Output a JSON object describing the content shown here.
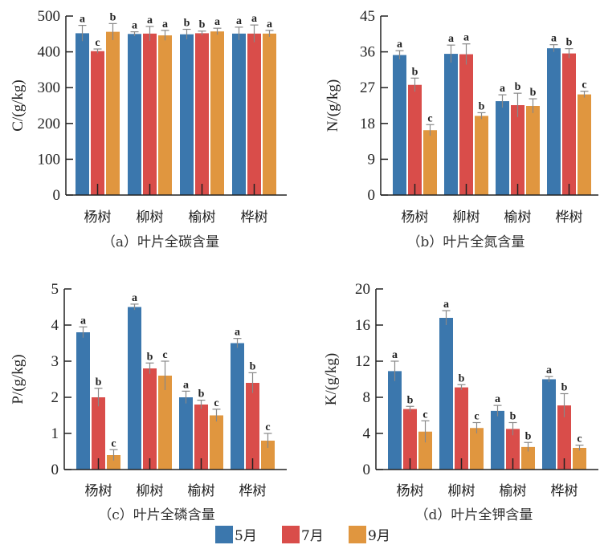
{
  "colors": {
    "may": "#3b77ad",
    "jul": "#d94d4a",
    "sep": "#e0963f",
    "axis": "#222222",
    "err": "#888888"
  },
  "legend": [
    {
      "label": "5月",
      "color_key": "may"
    },
    {
      "label": "7月",
      "color_key": "jul"
    },
    {
      "label": "9月",
      "color_key": "sep"
    }
  ],
  "chart_data": [
    {
      "type": "bar",
      "title": "（a）叶片全碳含量",
      "xlabel": "",
      "ylabel": "C/(g/kg)",
      "ylim": [
        0,
        500
      ],
      "yticks": [
        0,
        100,
        200,
        300,
        400,
        500
      ],
      "categories": [
        "杨树",
        "柳树",
        "榆树",
        "桦树"
      ],
      "series": [
        {
          "name": "5月",
          "values": [
            452,
            450,
            449,
            451
          ],
          "errors": [
            22,
            6,
            14,
            18
          ],
          "sig": [
            "a",
            "a",
            "b",
            "a"
          ]
        },
        {
          "name": "7月",
          "values": [
            402,
            451,
            452,
            451
          ],
          "errors": [
            6,
            20,
            6,
            24
          ],
          "sig": [
            "c",
            "a",
            "b",
            "a"
          ]
        },
        {
          "name": "9月",
          "values": [
            456,
            446,
            457,
            451
          ],
          "errors": [
            23,
            14,
            9,
            9
          ],
          "sig": [
            "b",
            "a",
            "a",
            "a"
          ]
        }
      ]
    },
    {
      "type": "bar",
      "title": "（b）叶片全氮含量",
      "xlabel": "",
      "ylabel": "N/(g/kg)",
      "ylim": [
        0,
        45
      ],
      "yticks": [
        0,
        9,
        18,
        27,
        36,
        45
      ],
      "categories": [
        "杨树",
        "柳树",
        "榆树",
        "桦树"
      ],
      "series": [
        {
          "name": "5月",
          "values": [
            35.2,
            35.5,
            23.6,
            36.9
          ],
          "errors": [
            1.1,
            2.2,
            1.6,
            0.9
          ],
          "sig": [
            "a",
            "a",
            "a",
            "a"
          ]
        },
        {
          "name": "7月",
          "values": [
            27.7,
            35.4,
            22.6,
            35.6
          ],
          "errors": [
            1.7,
            2.6,
            3.0,
            1.2
          ],
          "sig": [
            "b",
            "a",
            "b",
            "b"
          ]
        },
        {
          "name": "9月",
          "values": [
            16.3,
            19.9,
            22.4,
            25.3
          ],
          "errors": [
            1.4,
            0.8,
            1.8,
            0.8
          ],
          "sig": [
            "c",
            "b",
            "b",
            "c"
          ]
        }
      ]
    },
    {
      "type": "bar",
      "title": "（c）叶片全磷含量",
      "xlabel": "",
      "ylabel": "P/(g/kg)",
      "ylim": [
        0,
        5
      ],
      "yticks": [
        0,
        1,
        2,
        3,
        4,
        5
      ],
      "categories": [
        "杨树",
        "柳树",
        "榆树",
        "桦树"
      ],
      "series": [
        {
          "name": "5月",
          "values": [
            3.8,
            4.5,
            2.0,
            3.5
          ],
          "errors": [
            0.15,
            0.08,
            0.17,
            0.13
          ],
          "sig": [
            "a",
            "a",
            "a",
            "a"
          ]
        },
        {
          "name": "7月",
          "values": [
            2.0,
            2.8,
            1.8,
            2.4
          ],
          "errors": [
            0.25,
            0.15,
            0.12,
            0.28
          ],
          "sig": [
            "b",
            "b",
            "b",
            "b"
          ]
        },
        {
          "name": "9月",
          "values": [
            0.4,
            2.6,
            1.5,
            0.8
          ],
          "errors": [
            0.15,
            0.4,
            0.17,
            0.2
          ],
          "sig": [
            "c",
            "c",
            "c",
            "c"
          ]
        }
      ]
    },
    {
      "type": "bar",
      "title": "（d）叶片全钾含量",
      "xlabel": "",
      "ylabel": "K/(g/kg)",
      "ylim": [
        0,
        20
      ],
      "yticks": [
        0,
        4,
        8,
        12,
        16,
        20
      ],
      "categories": [
        "杨树",
        "柳树",
        "榆树",
        "桦树"
      ],
      "series": [
        {
          "name": "5月",
          "values": [
            10.9,
            16.8,
            6.5,
            10.0
          ],
          "errors": [
            1.1,
            0.8,
            0.6,
            0.3
          ],
          "sig": [
            "a",
            "a",
            "a",
            "a"
          ]
        },
        {
          "name": "7月",
          "values": [
            6.7,
            9.1,
            4.5,
            7.1
          ],
          "errors": [
            0.3,
            0.3,
            0.7,
            1.3
          ],
          "sig": [
            "b",
            "b",
            "b",
            "b"
          ]
        },
        {
          "name": "9月",
          "values": [
            4.2,
            4.6,
            2.5,
            2.4
          ],
          "errors": [
            1.2,
            0.6,
            0.5,
            0.3
          ],
          "sig": [
            "c",
            "c",
            "b",
            "c"
          ]
        }
      ]
    }
  ]
}
